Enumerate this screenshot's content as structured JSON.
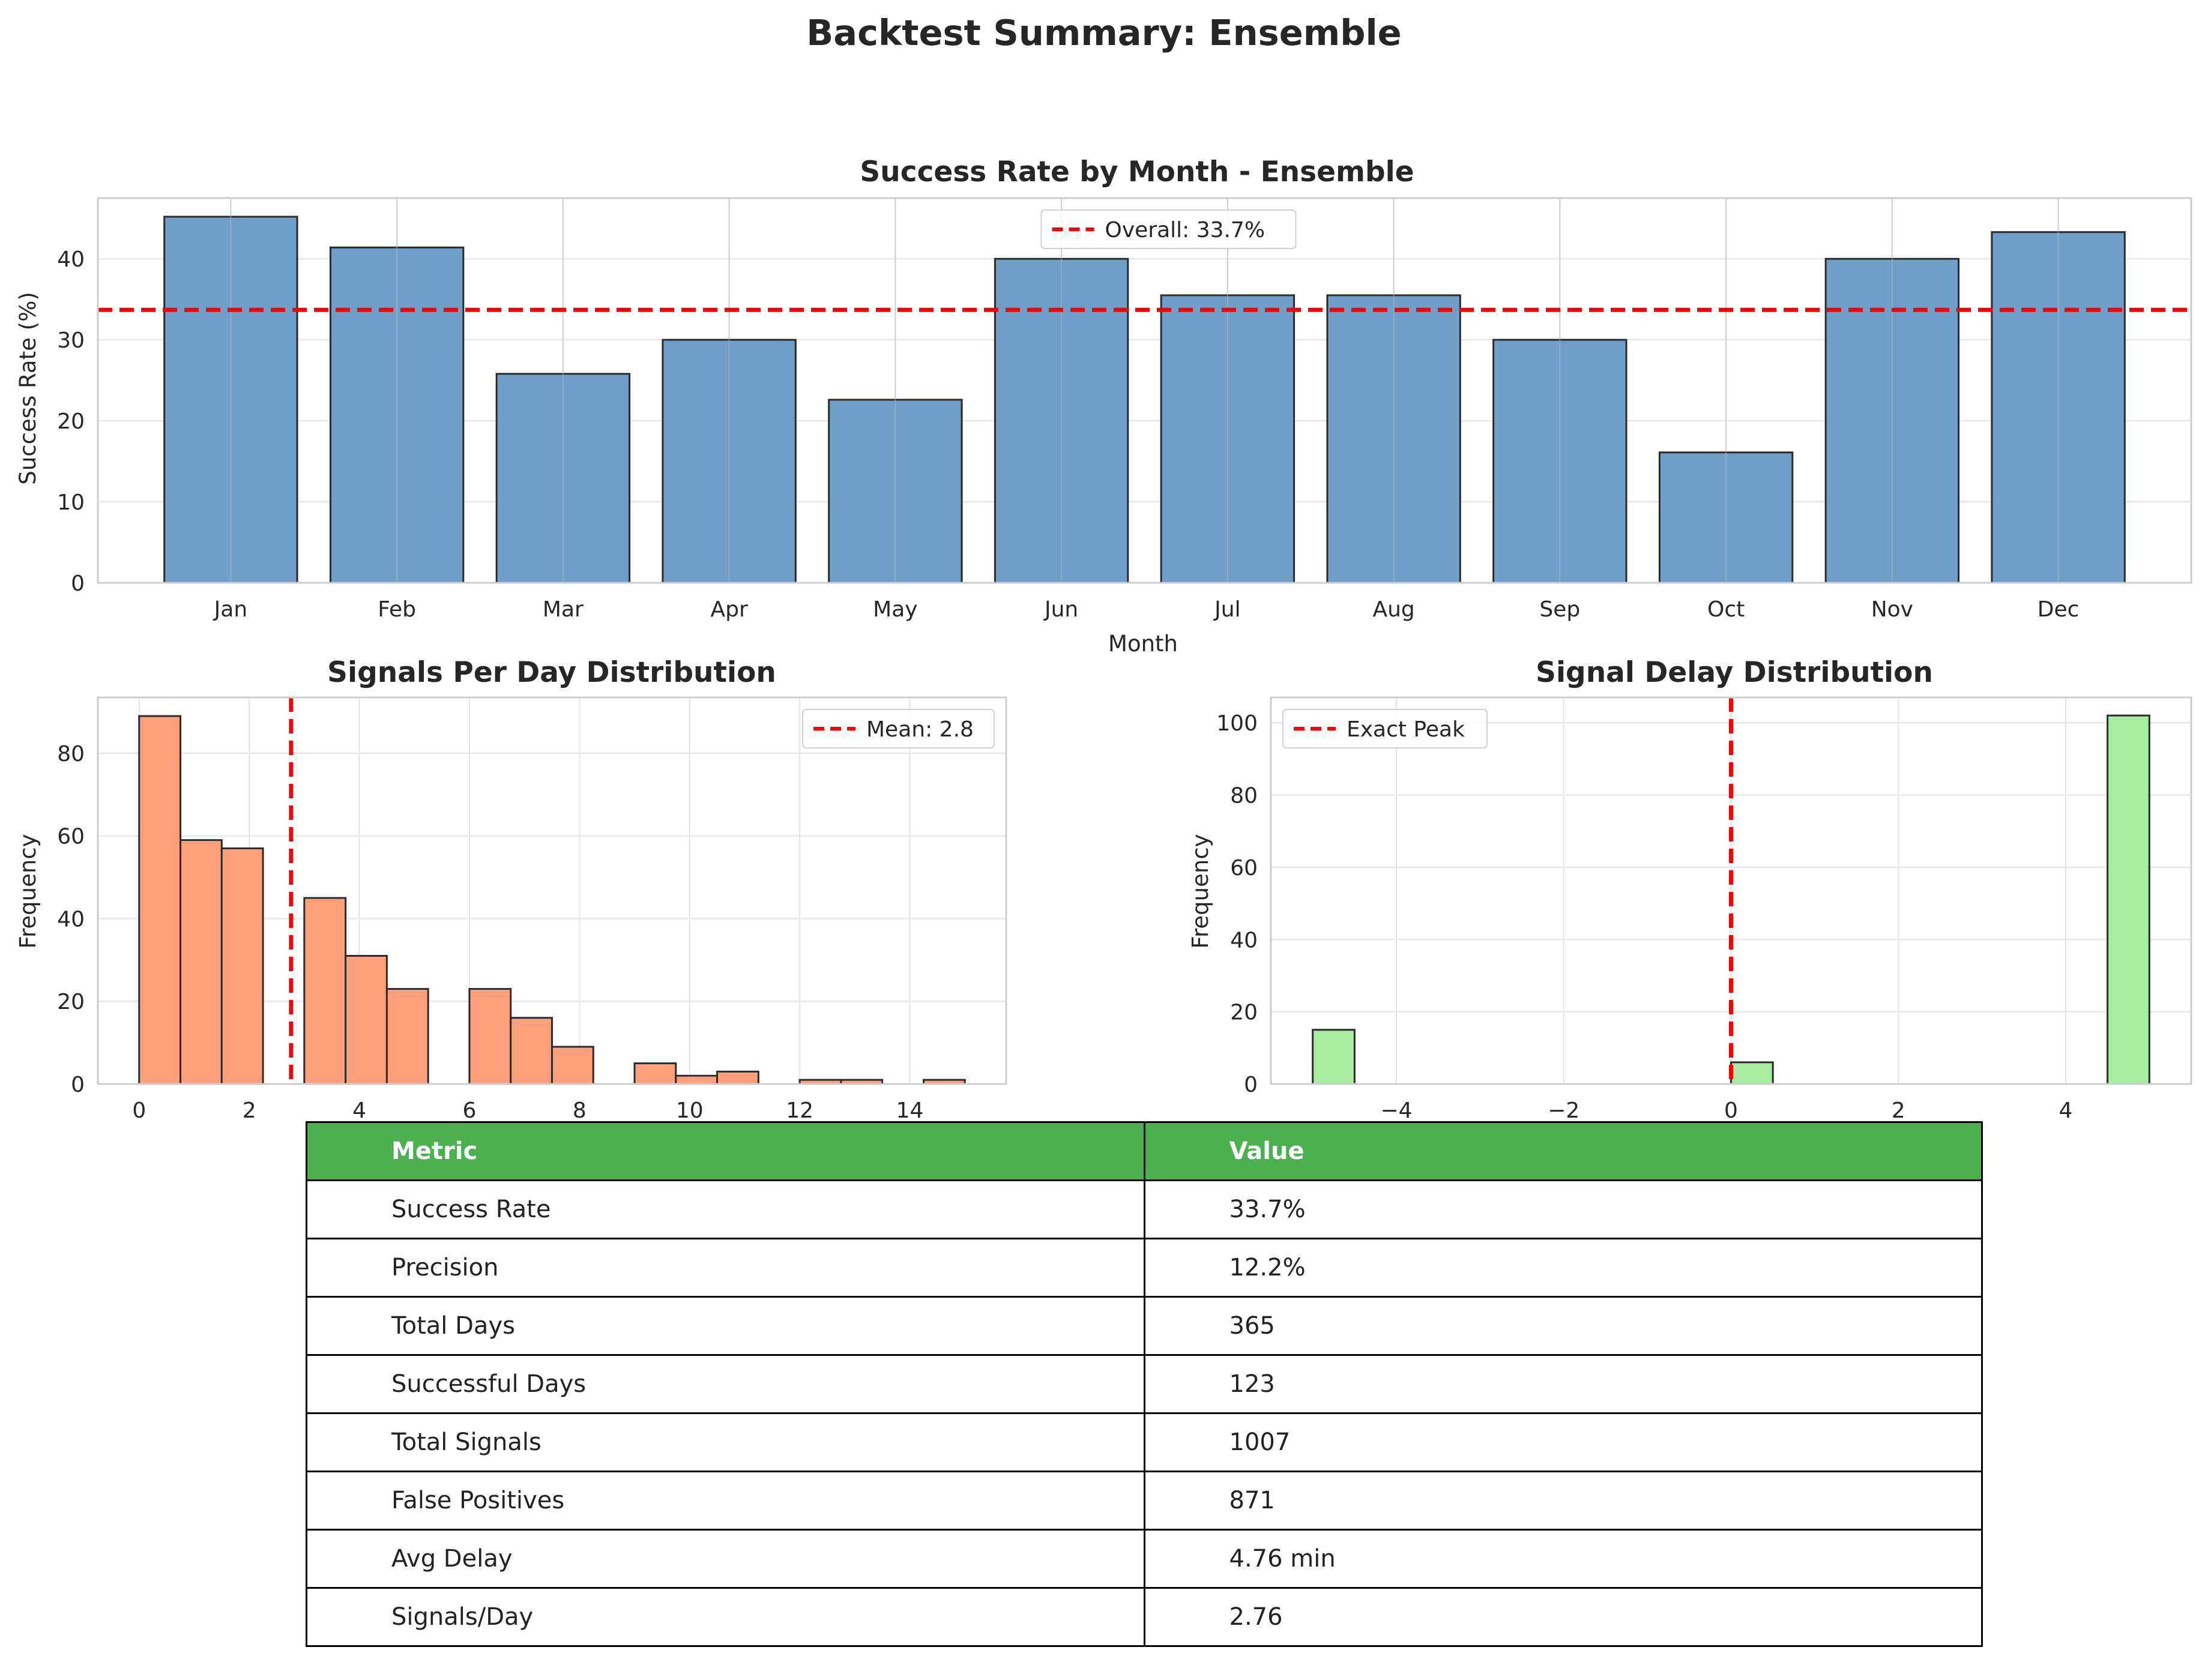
{
  "suptitle": "Backtest Summary: Ensemble",
  "colors": {
    "bar": "#6f9ec8",
    "hist1": "#ffa07a",
    "hist2": "#a8eca0",
    "line": "#ff0000",
    "header": "#4caf50"
  },
  "chart_data": [
    {
      "type": "bar",
      "title": "Success Rate by Month - Ensemble",
      "xlabel": "Month",
      "ylabel": "Success Rate (%)",
      "categories": [
        "Jan",
        "Feb",
        "Mar",
        "Apr",
        "May",
        "Jun",
        "Jul",
        "Aug",
        "Sep",
        "Oct",
        "Nov",
        "Dec"
      ],
      "values": [
        45.2,
        41.4,
        25.8,
        30.0,
        22.6,
        40.0,
        35.5,
        35.5,
        30.0,
        16.1,
        40.0,
        43.3
      ],
      "ylim": [
        0,
        47.5
      ],
      "yticks": [
        0,
        10,
        20,
        30,
        40
      ],
      "reference_line": {
        "label": "Overall: 33.7%",
        "value": 33.7
      },
      "legend": "top-center",
      "grid": true
    },
    {
      "type": "bar",
      "title": "Signals Per Day Distribution",
      "ylabel": "Frequency",
      "bins": [
        {
          "x0": 0,
          "x1": 0.75,
          "count": 89
        },
        {
          "x0": 0.75,
          "x1": 1.5,
          "count": 59
        },
        {
          "x0": 1.5,
          "x1": 2.25,
          "count": 57
        },
        {
          "x0": 3.0,
          "x1": 3.75,
          "count": 45
        },
        {
          "x0": 3.75,
          "x1": 4.5,
          "count": 31
        },
        {
          "x0": 4.5,
          "x1": 5.25,
          "count": 23
        },
        {
          "x0": 6.0,
          "x1": 6.75,
          "count": 23
        },
        {
          "x0": 6.75,
          "x1": 7.5,
          "count": 16
        },
        {
          "x0": 7.5,
          "x1": 8.25,
          "count": 9
        },
        {
          "x0": 9.0,
          "x1": 9.75,
          "count": 5
        },
        {
          "x0": 9.75,
          "x1": 10.5,
          "count": 2
        },
        {
          "x0": 10.5,
          "x1": 11.25,
          "count": 3
        },
        {
          "x0": 12.0,
          "x1": 12.75,
          "count": 1
        },
        {
          "x0": 12.75,
          "x1": 13.5,
          "count": 1
        },
        {
          "x0": 14.25,
          "x1": 15.0,
          "count": 1
        }
      ],
      "xlim": [
        -0.75,
        15.75
      ],
      "ylim": [
        0,
        93.5
      ],
      "xticks": [
        0,
        2,
        4,
        6,
        8,
        10,
        12,
        14
      ],
      "yticks": [
        0,
        20,
        40,
        60,
        80
      ],
      "reference_line": {
        "label": "Mean: 2.8",
        "value": 2.76
      },
      "legend": "top-right",
      "grid": true
    },
    {
      "type": "bar",
      "title": "Signal Delay Distribution",
      "ylabel": "Frequency",
      "bins": [
        {
          "x0": -5.0,
          "x1": -4.5,
          "count": 15
        },
        {
          "x0": 0.0,
          "x1": 0.5,
          "count": 6
        },
        {
          "x0": 4.5,
          "x1": 5.0,
          "count": 102
        }
      ],
      "xlim": [
        -5.5,
        5.5
      ],
      "ylim": [
        0,
        107
      ],
      "xticks": [
        -4,
        -2,
        0,
        2,
        4
      ],
      "xtick_labels": [
        "−4",
        "−2",
        "0",
        "2",
        "4"
      ],
      "yticks": [
        0,
        20,
        40,
        60,
        80,
        100
      ],
      "reference_line": {
        "label": "Exact Peak",
        "value": 0
      },
      "legend": "top-left",
      "grid": true
    }
  ],
  "table": {
    "header": [
      "Metric",
      "Value"
    ],
    "rows": [
      [
        "Success Rate",
        "33.7%"
      ],
      [
        "Precision",
        "12.2%"
      ],
      [
        "Total Days",
        "365"
      ],
      [
        "Successful Days",
        "123"
      ],
      [
        "Total Signals",
        "1007"
      ],
      [
        "False Positives",
        "871"
      ],
      [
        "Avg Delay",
        "4.76 min"
      ],
      [
        "Signals/Day",
        "2.76"
      ]
    ]
  }
}
